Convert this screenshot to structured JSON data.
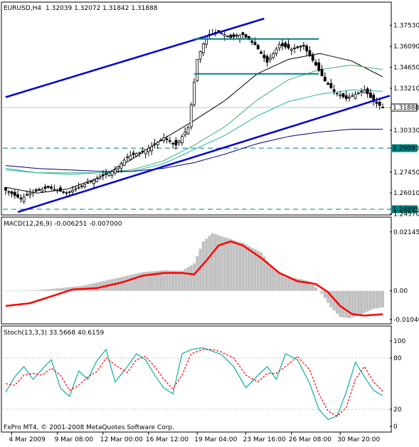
{
  "chart_data": [
    {
      "type": "candlestick",
      "symbol_label": "EURUSD,H4",
      "ohlc_label": "1.32039 1.32072 1.31842 1.31888",
      "ylim": [
        1.246,
        1.383
      ],
      "price_ticks": [
        "1.37530",
        "1.36090",
        "1.34650",
        "1.33210",
        "1.31888",
        "1.30330",
        "1.29093",
        "1.27450",
        "1.26010",
        "1.24895",
        "1.24570"
      ],
      "tick_values": [
        1.3753,
        1.3609,
        1.3465,
        1.3321,
        1.31888,
        1.3033,
        1.29093,
        1.2745,
        1.2601,
        1.24895,
        1.2457
      ],
      "boxed_ticks": [
        "1.31888",
        "1.29093",
        "1.24895"
      ],
      "current_price": 1.31888,
      "horizontal_levels": [
        1.29093,
        1.24895
      ],
      "candles": {
        "n": 125,
        "close_path": [
          [
            0,
            1.262
          ],
          [
            5,
            1.256
          ],
          [
            8,
            1.26
          ],
          [
            14,
            1.264
          ],
          [
            20,
            1.26
          ],
          [
            26,
            1.266
          ],
          [
            32,
            1.272
          ],
          [
            36,
            1.276
          ],
          [
            40,
            1.285
          ],
          [
            44,
            1.288
          ],
          [
            48,
            1.292
          ],
          [
            52,
            1.298
          ],
          [
            56,
            1.293
          ],
          [
            60,
            1.305
          ],
          [
            63,
            1.352
          ],
          [
            66,
            1.368
          ],
          [
            70,
            1.371
          ],
          [
            74,
            1.367
          ],
          [
            78,
            1.369
          ],
          [
            82,
            1.362
          ],
          [
            86,
            1.35
          ],
          [
            90,
            1.362
          ],
          [
            94,
            1.359
          ],
          [
            98,
            1.361
          ],
          [
            102,
            1.348
          ],
          [
            105,
            1.337
          ],
          [
            108,
            1.33
          ],
          [
            112,
            1.325
          ],
          [
            115,
            1.328
          ],
          [
            118,
            1.331
          ],
          [
            121,
            1.323
          ],
          [
            124,
            1.319
          ]
        ]
      },
      "moving_averages": [
        {
          "color": "#000000",
          "values": [
            1.264,
            1.26,
            1.263,
            1.271,
            1.283,
            1.297,
            1.31,
            1.324,
            1.342,
            1.352,
            1.356,
            1.351,
            1.34
          ]
        },
        {
          "color": "#3cb371",
          "values": [
            1.276,
            1.274,
            1.274,
            1.274,
            1.276,
            1.282,
            1.293,
            1.306,
            1.324,
            1.338,
            1.345,
            1.348,
            1.345
          ]
        },
        {
          "color": "#20b2aa",
          "values": [
            1.277,
            1.274,
            1.273,
            1.274,
            1.275,
            1.28,
            1.29,
            1.3,
            1.313,
            1.323,
            1.328,
            1.331,
            1.33
          ]
        },
        {
          "color": "#000080",
          "values": [
            1.279,
            1.277,
            1.276,
            1.275,
            1.275,
            1.277,
            1.281,
            1.287,
            1.294,
            1.299,
            1.302,
            1.304,
            1.304
          ]
        }
      ],
      "trend_lines": [
        {
          "color": "#0000cd",
          "from": [
            0,
            1.326
          ],
          "to": [
            85,
            1.38
          ]
        },
        {
          "color": "#0000cd",
          "from": [
            4,
            1.247
          ],
          "to": [
            135,
            1.327
          ]
        }
      ],
      "channel_lines": [
        {
          "color": "#008080",
          "from": [
            62,
            1.366
          ],
          "to": [
            103,
            1.366
          ]
        },
        {
          "color": "#008080",
          "from": [
            62,
            1.342
          ],
          "to": [
            103,
            1.342
          ]
        }
      ]
    },
    {
      "type": "histogram-line",
      "label": "MACD(12,26,9) -0.006251 -0.007000",
      "ylim": [
        -0.0115,
        0.0227
      ],
      "ticks": [
        "0.021454",
        "0.00",
        "-0.010404"
      ],
      "tick_values": [
        0.021454,
        0.0,
        -0.010404
      ],
      "histogram_color": "#c0c0c0",
      "signal_color": "#ff0000",
      "histogram_path": [
        [
          0,
          0.0
        ],
        [
          10,
          0.0002
        ],
        [
          18,
          0.001
        ],
        [
          25,
          0.0018
        ],
        [
          30,
          0.003
        ],
        [
          38,
          0.005
        ],
        [
          45,
          0.0068
        ],
        [
          52,
          0.0075
        ],
        [
          58,
          0.0073
        ],
        [
          62,
          0.01
        ],
        [
          65,
          0.018
        ],
        [
          68,
          0.021
        ],
        [
          72,
          0.0195
        ],
        [
          78,
          0.0175
        ],
        [
          84,
          0.014
        ],
        [
          88,
          0.008
        ],
        [
          92,
          0.005
        ],
        [
          96,
          0.0045
        ],
        [
          100,
          0.0035
        ],
        [
          104,
          -0.001
        ],
        [
          107,
          -0.006
        ],
        [
          110,
          -0.0095
        ],
        [
          113,
          -0.01
        ],
        [
          117,
          -0.0085
        ],
        [
          121,
          -0.0065
        ],
        [
          124,
          -0.006
        ]
      ],
      "signal_path": [
        [
          0,
          -0.0055
        ],
        [
          8,
          -0.0045
        ],
        [
          15,
          -0.002
        ],
        [
          22,
          0.0005
        ],
        [
          30,
          0.001
        ],
        [
          38,
          0.003
        ],
        [
          45,
          0.0055
        ],
        [
          52,
          0.0065
        ],
        [
          58,
          0.0065
        ],
        [
          62,
          0.006
        ],
        [
          66,
          0.011
        ],
        [
          70,
          0.0165
        ],
        [
          74,
          0.018
        ],
        [
          78,
          0.0165
        ],
        [
          84,
          0.012
        ],
        [
          90,
          0.0065
        ],
        [
          96,
          0.0035
        ],
        [
          102,
          0.0025
        ],
        [
          106,
          -0.0005
        ],
        [
          110,
          -0.0055
        ],
        [
          114,
          -0.0085
        ],
        [
          118,
          -0.009
        ],
        [
          124,
          -0.0085
        ]
      ]
    },
    {
      "type": "line",
      "label": "Stoch(13,3,3) 33.5668 40.6159",
      "ylim": [
        -5,
        105
      ],
      "ticks": [
        "100",
        "80",
        "20",
        "0"
      ],
      "tick_values": [
        100,
        80,
        20,
        0
      ],
      "main_color": "#20b2aa",
      "signal_color": "#ff0000",
      "main_path": [
        [
          0,
          40
        ],
        [
          3,
          58
        ],
        [
          6,
          70
        ],
        [
          9,
          55
        ],
        [
          12,
          67
        ],
        [
          15,
          78
        ],
        [
          18,
          45
        ],
        [
          21,
          35
        ],
        [
          24,
          65
        ],
        [
          27,
          55
        ],
        [
          30,
          77
        ],
        [
          33,
          90
        ],
        [
          36,
          52
        ],
        [
          40,
          70
        ],
        [
          43,
          85
        ],
        [
          46,
          78
        ],
        [
          49,
          60
        ],
        [
          52,
          45
        ],
        [
          55,
          38
        ],
        [
          58,
          85
        ],
        [
          61,
          90
        ],
        [
          65,
          92
        ],
        [
          68,
          88
        ],
        [
          71,
          84
        ],
        [
          75,
          70
        ],
        [
          79,
          45
        ],
        [
          83,
          60
        ],
        [
          86,
          70
        ],
        [
          89,
          55
        ],
        [
          92,
          85
        ],
        [
          96,
          78
        ],
        [
          100,
          50
        ],
        [
          103,
          20
        ],
        [
          106,
          8
        ],
        [
          109,
          12
        ],
        [
          112,
          40
        ],
        [
          115,
          75
        ],
        [
          118,
          58
        ],
        [
          121,
          42
        ],
        [
          124,
          36
        ]
      ],
      "signal_path": [
        [
          0,
          50
        ],
        [
          3,
          48
        ],
        [
          6,
          60
        ],
        [
          9,
          62
        ],
        [
          12,
          60
        ],
        [
          15,
          68
        ],
        [
          18,
          60
        ],
        [
          21,
          42
        ],
        [
          24,
          48
        ],
        [
          27,
          58
        ],
        [
          30,
          64
        ],
        [
          33,
          80
        ],
        [
          36,
          72
        ],
        [
          40,
          63
        ],
        [
          43,
          78
        ],
        [
          46,
          82
        ],
        [
          49,
          70
        ],
        [
          52,
          55
        ],
        [
          55,
          44
        ],
        [
          58,
          60
        ],
        [
          61,
          85
        ],
        [
          65,
          90
        ],
        [
          68,
          90
        ],
        [
          71,
          87
        ],
        [
          75,
          80
        ],
        [
          79,
          60
        ],
        [
          83,
          52
        ],
        [
          86,
          62
        ],
        [
          89,
          62
        ],
        [
          92,
          70
        ],
        [
          96,
          82
        ],
        [
          100,
          66
        ],
        [
          103,
          38
        ],
        [
          106,
          18
        ],
        [
          109,
          12
        ],
        [
          112,
          22
        ],
        [
          115,
          55
        ],
        [
          118,
          70
        ],
        [
          121,
          52
        ],
        [
          124,
          41
        ]
      ]
    }
  ],
  "time_axis": {
    "n": 125,
    "labels": [
      "4 Mar 2009",
      "9 Mar 08:00",
      "12 Mar 00:00",
      "16 Mar 12:00",
      "19 Mar 04:00",
      "23 Mar 16:00",
      "26 Mar 08:00",
      "30 Mar 20:00"
    ],
    "positions": [
      2,
      17,
      32,
      47,
      63,
      79,
      94,
      110
    ]
  },
  "footer": "FxPro MT4, © 2001-2008 MetaQuotes Software Corp.",
  "colors": {
    "background": "#ffffff",
    "frame": "#000000",
    "grid": "#c0c0c0",
    "candle_bull": "#ffffff",
    "candle_bear": "#000000"
  }
}
